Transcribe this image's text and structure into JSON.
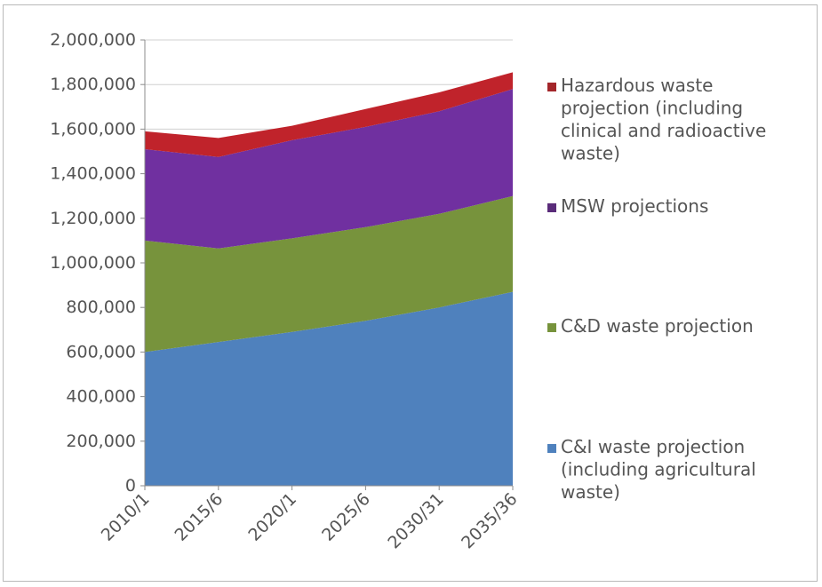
{
  "chart_data": {
    "type": "area",
    "stacked": true,
    "categories": [
      "2010/1",
      "2015/6",
      "2020/1",
      "2025/6",
      "2030/31",
      "2035/36"
    ],
    "ylim": [
      0,
      2000000
    ],
    "yticks": [
      0,
      200000,
      400000,
      600000,
      800000,
      1000000,
      1200000,
      1400000,
      1600000,
      1800000,
      2000000
    ],
    "ytick_labels": [
      "0",
      "200,000",
      "400,000",
      "600,000",
      "800,000",
      "1,000,000",
      "1,200,000",
      "1,400,000",
      "1,600,000",
      "1,800,000",
      "2,000,000"
    ],
    "grid": "horizontal",
    "legend_position": "right",
    "series": [
      {
        "name": "C&I waste projection (including agricultural waste)",
        "values": [
          600000,
          645000,
          690000,
          740000,
          800000,
          870000
        ],
        "color": "#4f81bd"
      },
      {
        "name": "C&D waste projection",
        "values": [
          500000,
          420000,
          420000,
          420000,
          420000,
          430000
        ],
        "color": "#77933c"
      },
      {
        "name": "MSW projections",
        "values": [
          410000,
          410000,
          440000,
          450000,
          460000,
          480000
        ],
        "color": "#7030a0"
      },
      {
        "name": "Hazardous waste projection (including clinical and radioactive waste)",
        "values": [
          80000,
          85000,
          65000,
          80000,
          85000,
          75000
        ],
        "color": "#c0232b"
      }
    ],
    "legend": [
      {
        "lines": [
          "Hazardous waste",
          "projection (including",
          "clinical and radioactive",
          "waste)"
        ],
        "color": "#a3262a"
      },
      {
        "lines": [
          "MSW projections"
        ],
        "color": "#5a2c7a"
      },
      {
        "lines": [
          "C&D waste projection"
        ],
        "color": "#77933c"
      },
      {
        "lines": [
          "C&I waste projection",
          "(including agricultural",
          "waste)"
        ],
        "color": "#4f81bd"
      }
    ]
  }
}
